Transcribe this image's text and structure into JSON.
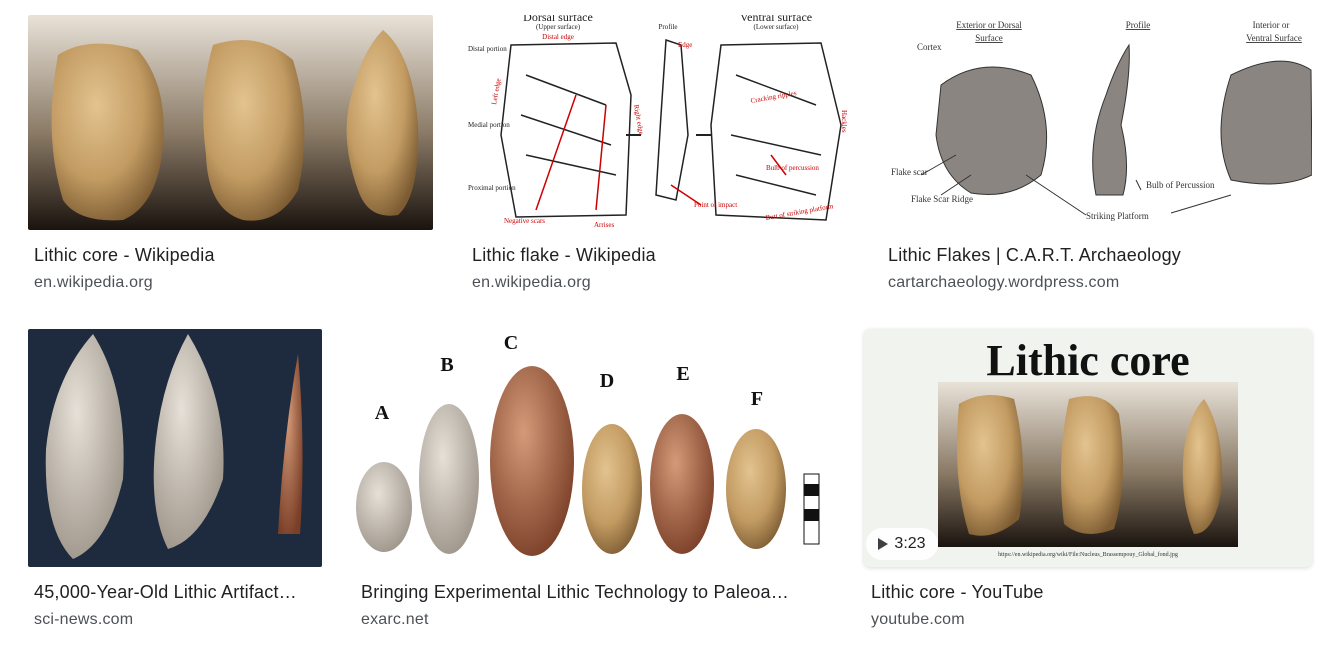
{
  "results": [
    {
      "title": "Lithic core - Wikipedia",
      "source": "en.wikipedia.org"
    },
    {
      "title": "Lithic flake - Wikipedia",
      "source": "en.wikipedia.org",
      "image": {
        "labels": [
          "Dorsal surface",
          "(Upper surface)",
          "Profile",
          "Ventral surface",
          "(Lower surface)",
          "Distal edge",
          "Distal portion",
          "Medial portion",
          "Proximal portion",
          "Left edge",
          "Right edge",
          "Edge",
          "Cracking ripples",
          "Bulb of percussion",
          "Point of impact",
          "Butt of striking platform",
          "Negative scars",
          "Arrises",
          "Hackles"
        ]
      }
    },
    {
      "title": "Lithic Flakes | C.A.R.T. Archaeology",
      "source": "cartarchaeology.wordpress.com",
      "image": {
        "labels": [
          "Exterior or Dorsal",
          "Surface",
          "Profile",
          "Interior or",
          "Ventral Surface",
          "Cortex",
          "Flake scar",
          "Flake Scar Ridge",
          "Bulb of Percussion",
          "Striking Platform"
        ]
      }
    },
    {
      "title": "45,000-Year-Old Lithic Artifact…",
      "source": "sci-news.com"
    },
    {
      "title": "Bringing Experimental Lithic Technology to Paleoa…",
      "source": "exarc.net",
      "image": {
        "labels": [
          "A",
          "B",
          "C",
          "D",
          "E",
          "F"
        ]
      }
    },
    {
      "title": "Lithic core - YouTube",
      "source": "youtube.com",
      "duration": "3:23",
      "image": {
        "heading": "Lithic core",
        "caption": "https://en.wikipedia.org/wiki/File:Nucleus_Brassempouy_Global_fond.jpg"
      }
    }
  ]
}
